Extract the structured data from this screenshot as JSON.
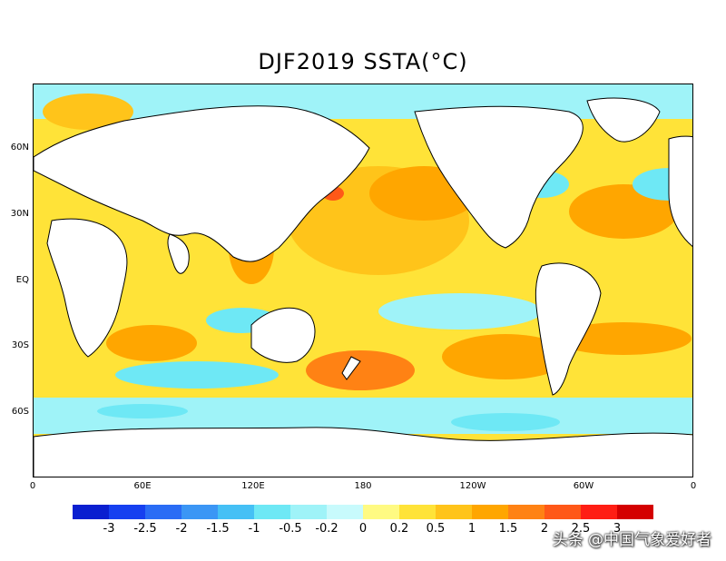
{
  "title": "DJF2019 SSTA(°C)",
  "axes": {
    "lat_labels": [
      "60N",
      "30N",
      "EQ",
      "30S",
      "60S"
    ],
    "lon_labels": [
      "0",
      "60E",
      "120E",
      "180",
      "120W",
      "60W",
      "0"
    ]
  },
  "colorbar": {
    "colors": [
      "#0a1fd0",
      "#1640f0",
      "#2a6cf5",
      "#3b96f5",
      "#45c0f5",
      "#6ee8f5",
      "#9ff3f8",
      "#c8fafc",
      "#fffa82",
      "#ffe338",
      "#ffc41a",
      "#ffa600",
      "#ff8214",
      "#ff5818",
      "#ff1e14",
      "#d40000"
    ],
    "tick_labels": [
      "-3",
      "-2.5",
      "-2",
      "-1.5",
      "-1",
      "-0.5",
      "-0.2",
      "0",
      "0.2",
      "0.5",
      "1",
      "1.5",
      "2",
      "2.5",
      "3"
    ]
  },
  "watermark": "头条 @中国气象爱好者"
}
